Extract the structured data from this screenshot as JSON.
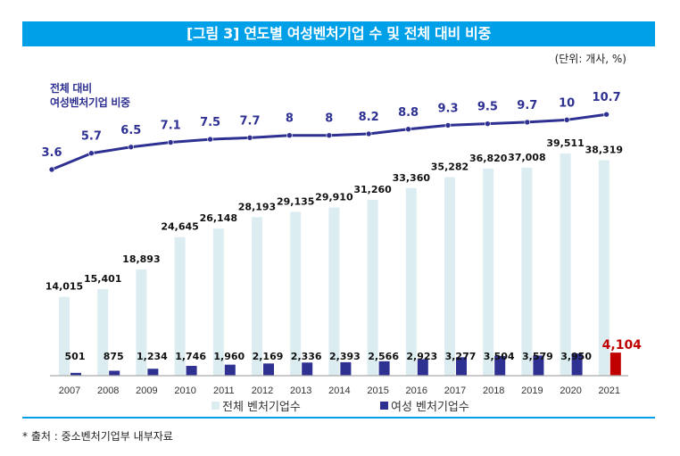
{
  "title": "[그림 3] 연도별 여성벤처기업 수 및 전체 대비 비중",
  "unit_label": "(단위: 개사, %)",
  "source_note": "* 출처 : 중소벤처기업부 내부자료",
  "colors": {
    "title_bar": "#00a0e9",
    "total_bar": "#dbedf0",
    "women_bar": "#2e3192",
    "women_bar_highlight": "#c00000",
    "highlight_label": "#c00000",
    "line": "#2e3192",
    "line_label": "#2e3192"
  },
  "chart_data": {
    "type": "bar",
    "title": "[그림 3] 연도별 여성벤처기업 수 및 전체 대비 비중",
    "categories": [
      "2007",
      "2008",
      "2009",
      "2010",
      "2011",
      "2012",
      "2013",
      "2014",
      "2015",
      "2016",
      "2017",
      "2018",
      "2019",
      "2020",
      "2021"
    ],
    "series": [
      {
        "name": "전체 벤처기업수",
        "type": "bar",
        "values": [
          14015,
          15401,
          18893,
          24645,
          26148,
          28193,
          29135,
          29910,
          31260,
          33360,
          35282,
          36820,
          37008,
          39511,
          38319
        ],
        "labels": [
          "14,015",
          "15,401",
          "18,893",
          "24,645",
          "26,148",
          "28,193",
          "29,135",
          "29,910",
          "31,260",
          "33,360",
          "35,282",
          "36,820",
          "37,008",
          "39,511",
          "38,319"
        ]
      },
      {
        "name": "여성 벤처기업수",
        "type": "bar",
        "values": [
          501,
          875,
          1234,
          1746,
          1960,
          2169,
          2336,
          2393,
          2566,
          2923,
          3277,
          3504,
          3579,
          3950,
          4104
        ],
        "labels": [
          "501",
          "875",
          "1,234",
          "1,746",
          "1,960",
          "2,169",
          "2,336",
          "2,393",
          "2,566",
          "2,923",
          "3,277",
          "3,504",
          "3,579",
          "3,950",
          "4,104"
        ],
        "highlight_index": 14
      },
      {
        "name": "전체 대비 여성벤처기업 비중",
        "type": "line",
        "values": [
          3.6,
          5.7,
          6.5,
          7.1,
          7.5,
          7.7,
          8,
          8,
          8.2,
          8.8,
          9.3,
          9.5,
          9.7,
          10,
          10.7
        ],
        "labels": [
          "3.6",
          "5.7",
          "6.5",
          "7.1",
          "7.5",
          "7.7",
          "8",
          "8",
          "8.2",
          "8.8",
          "9.3",
          "9.5",
          "9.7",
          "10",
          "10.7"
        ]
      }
    ],
    "line_title_lines": [
      "전체 대비",
      "여성벤처기업 비중"
    ],
    "legend": [
      "전체 벤처기업수",
      "여성 벤처기업수"
    ],
    "legend_position": "bottom",
    "xlabel": "",
    "ylabel": "",
    "grid": false,
    "bar_ylim": [
      0,
      40000
    ],
    "line_ylim": [
      3.6,
      10.7
    ]
  }
}
